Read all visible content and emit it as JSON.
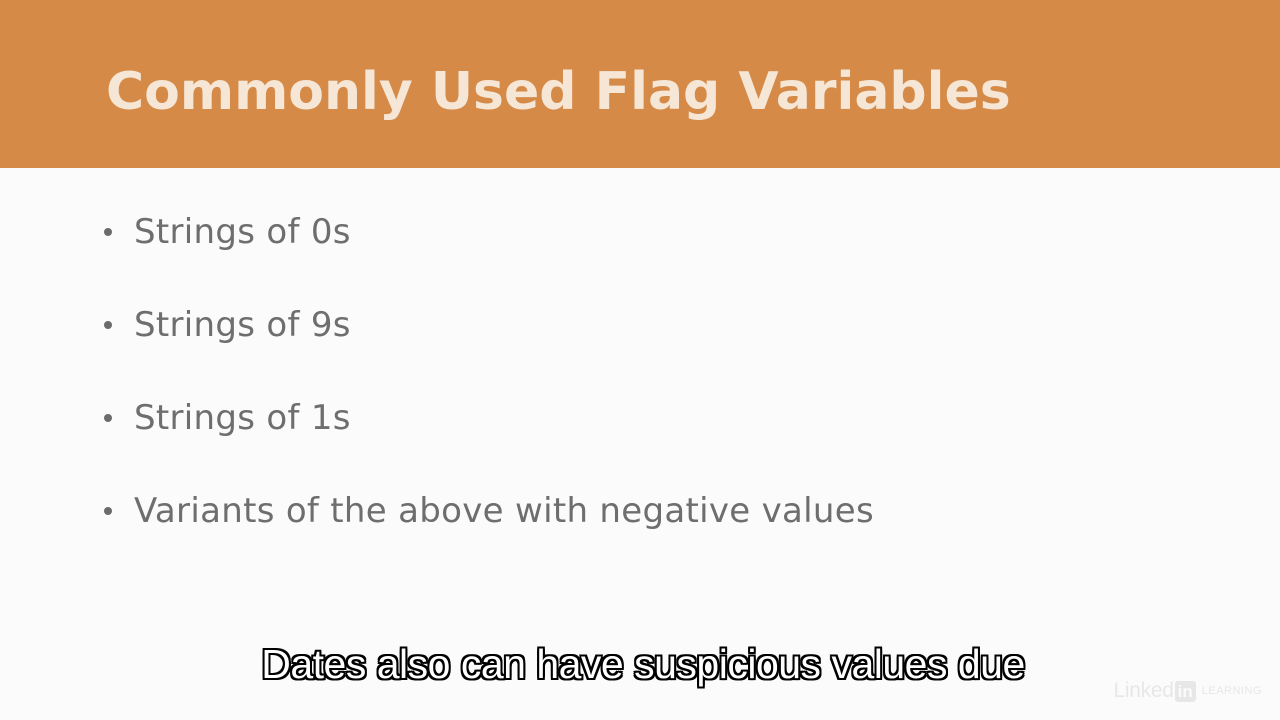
{
  "slide": {
    "title": "Commonly Used Flag Variables",
    "bullets": [
      "Strings of 0s",
      "Strings of 9s",
      "Strings of 1s",
      "Variants of the above with negative values"
    ]
  },
  "caption": "Dates also can have suspicious values due",
  "watermark": {
    "brand_text": "Linked",
    "brand_box": "in",
    "product": "LEARNING"
  },
  "colors": {
    "header_bar": "#d68a48",
    "title_text": "#f5e6d6",
    "body_text": "#6e6e6e",
    "background": "#fbfbfb"
  }
}
